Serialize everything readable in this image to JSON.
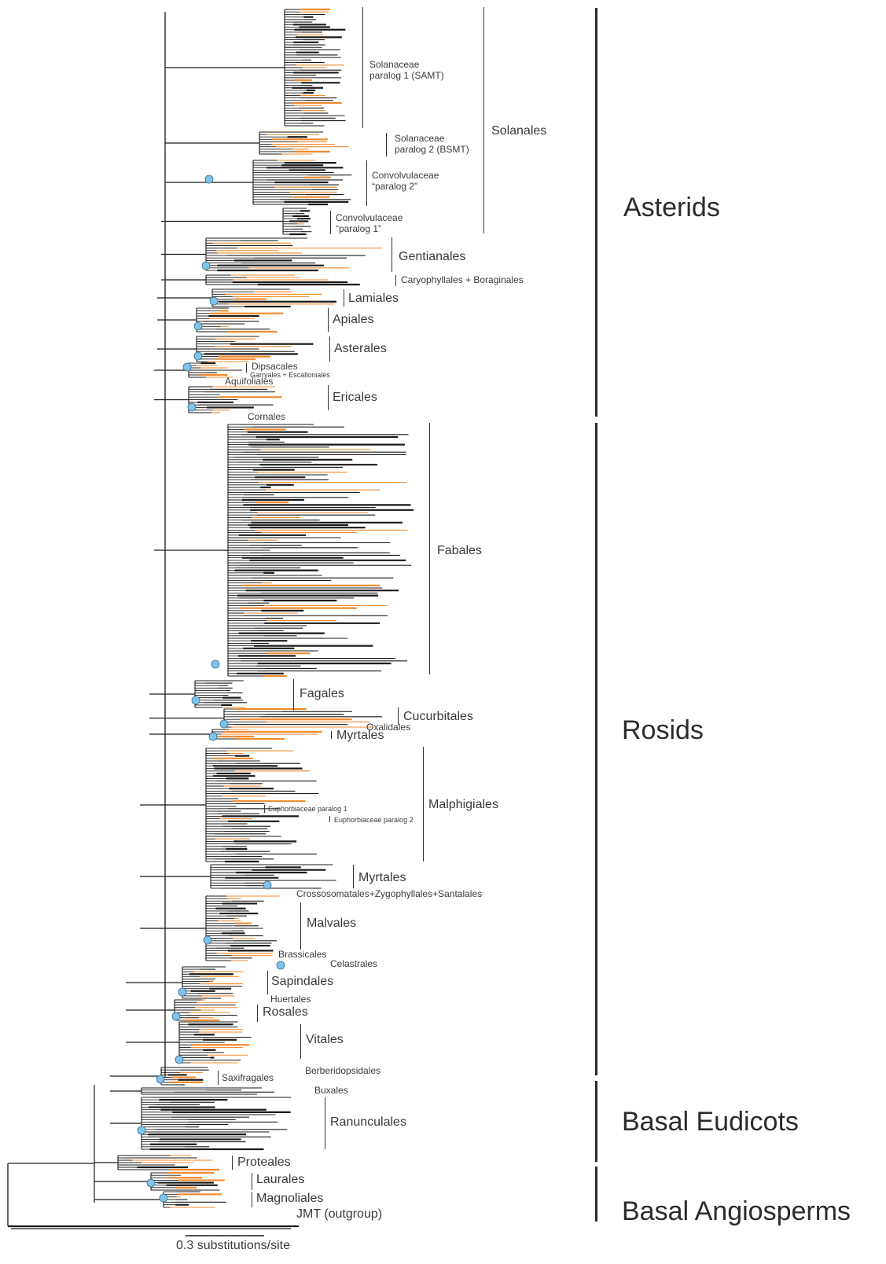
{
  "colors": {
    "branch": "#1a1a1a",
    "highlight": "#f08a2e",
    "node_marker": "#7fc3e8",
    "bracket": "#2b2b2b"
  },
  "major_groups": {
    "asterids": "Asterids",
    "rosids": "Rosids",
    "basal_eudicots": "Basal Eudicots",
    "basal_angiosperms": "Basal Angiosperms"
  },
  "clades": {
    "solanaceae_p1": "Solanaceae\nparalog 1 (SAMT)",
    "solanaceae_p2": "Solanaceae\nparalog 2 (BSMT)",
    "convolvulaceae_p2": "Convolvulaceae\n“paralog 2”",
    "convolvulaceae_p1": "Convolvulaceae\n“paralog 1”",
    "solanales": "Solanales",
    "gentianales": "Gentianales",
    "caryophyllales": "Caryophyllales + Boraginales",
    "lamiales": "Lamiales",
    "apiales": "Apiales",
    "asterales": "Asterales",
    "dipsacales": "Dipsacales",
    "garryales": "Garryales + Escalloniales",
    "aquifoliales": "Aquifoliales",
    "ericales": "Ericales",
    "cornales": "Cornales",
    "fabales": "Fabales",
    "fagales": "Fagales",
    "cucurbitales": "Cucurbitales",
    "oxalidales": "Oxalidales",
    "myrtales_1": "Myrtales",
    "malphigiales": "Malphigiales",
    "euph_p1": "Euphorbiaceae paralog 1",
    "euph_p2": "Euphorbiaceae paralog 2",
    "myrtales_2": "Myrtales",
    "crossosomatales": "Crossosomatales+Zygophyllales+Santalales",
    "malvales": "Malvales",
    "brassicales": "Brassicales",
    "celastrales": "Celastrales",
    "sapindales": "Sapindales",
    "huertales": "Huertales",
    "rosales": "Rosales",
    "vitales": "Vitales",
    "berberidopsidales": "Berberidopsidales",
    "saxifragales": "Saxifragales",
    "buxales": "Buxales",
    "ranunculales": "Ranunculales",
    "proteales": "Proteales",
    "laurales": "Laurales",
    "magnoliales": "Magnoliales",
    "outgroup": "JMT (outgroup)"
  },
  "scale_bar": {
    "label": "0.3 substitutions/site"
  }
}
